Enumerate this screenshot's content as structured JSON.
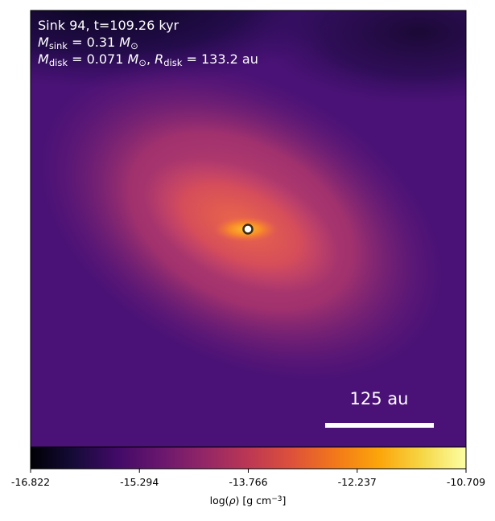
{
  "chart_data": {
    "type": "density-map",
    "annotations": [
      [
        {
          "text": "Sink 94, t=109.26 kyr"
        }
      ],
      [
        {
          "text": "M",
          "italic": true
        },
        {
          "text": "sink",
          "sub": true
        },
        {
          "text": " = 0.31 "
        },
        {
          "text": "M",
          "italic": true
        },
        {
          "text": "⊙",
          "sub": true
        }
      ],
      [
        {
          "text": "M",
          "italic": true
        },
        {
          "text": "disk",
          "sub": true
        },
        {
          "text": " = 0.071 "
        },
        {
          "text": "M",
          "italic": true
        },
        {
          "text": "⊙",
          "sub": true
        },
        {
          "text": ", "
        },
        {
          "text": "R",
          "italic": true
        },
        {
          "text": "disk",
          "sub": true
        },
        {
          "text": " = 133.2 au"
        }
      ]
    ],
    "scale_bar_label": "125 au",
    "colorbar_label": [
      {
        "text": "log("
      },
      {
        "text": "ρ",
        "italic": true
      },
      {
        "text": ") [g cm"
      },
      {
        "text": "−3",
        "sup": true
      },
      {
        "text": "]"
      }
    ],
    "colormap": "inferno",
    "clim": [
      -16.822,
      -10.709
    ],
    "cticks": [
      -16.822,
      -15.294,
      -13.766,
      -12.237,
      -10.709
    ]
  }
}
